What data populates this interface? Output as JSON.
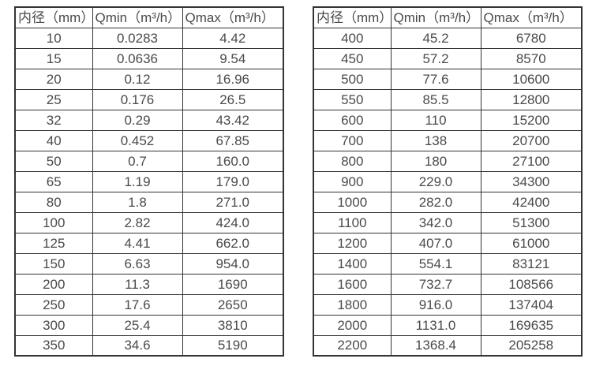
{
  "colors": {
    "border": "#333333",
    "text": "#4a4a4a",
    "background": "#ffffff"
  },
  "tables": [
    {
      "name": "flow-spec-table-small-diameters",
      "headers": [
        "内径（mm）",
        "Qmin（m³/h）",
        "Qmax（m³/h）"
      ],
      "rows": [
        [
          "10",
          "0.0283",
          "4.42"
        ],
        [
          "15",
          "0.0636",
          "9.54"
        ],
        [
          "20",
          "0.12",
          "16.96"
        ],
        [
          "25",
          "0.176",
          "26.5"
        ],
        [
          "32",
          "0.29",
          "43.42"
        ],
        [
          "40",
          "0.452",
          "67.85"
        ],
        [
          "50",
          "0.7",
          "160.0"
        ],
        [
          "65",
          "1.19",
          "179.0"
        ],
        [
          "80",
          "1.8",
          "271.0"
        ],
        [
          "100",
          "2.82",
          "424.0"
        ],
        [
          "125",
          "4.41",
          "662.0"
        ],
        [
          "150",
          "6.63",
          "954.0"
        ],
        [
          "200",
          "11.3",
          "1690"
        ],
        [
          "250",
          "17.6",
          "2650"
        ],
        [
          "300",
          "25.4",
          "3810"
        ],
        [
          "350",
          "34.6",
          "5190"
        ]
      ]
    },
    {
      "name": "flow-spec-table-large-diameters",
      "headers": [
        "内径（mm）",
        "Qmin（m³/h）",
        "Qmax（m³/h）"
      ],
      "rows": [
        [
          "400",
          "45.2",
          "6780"
        ],
        [
          "450",
          "57.2",
          "8570"
        ],
        [
          "500",
          "77.6",
          "10600"
        ],
        [
          "550",
          "85.5",
          "12800"
        ],
        [
          "600",
          "110",
          "15200"
        ],
        [
          "700",
          "138",
          "20700"
        ],
        [
          "800",
          "180",
          "27100"
        ],
        [
          "900",
          "229.0",
          "34300"
        ],
        [
          "1000",
          "282.0",
          "42400"
        ],
        [
          "1100",
          "342.0",
          "51300"
        ],
        [
          "1200",
          "407.0",
          "61000"
        ],
        [
          "1400",
          "554.1",
          "83121"
        ],
        [
          "1600",
          "732.7",
          "108566"
        ],
        [
          "1800",
          "916.0",
          "137404"
        ],
        [
          "2000",
          "1131.0",
          "169635"
        ],
        [
          "2200",
          "1368.4",
          "205258"
        ]
      ]
    }
  ]
}
